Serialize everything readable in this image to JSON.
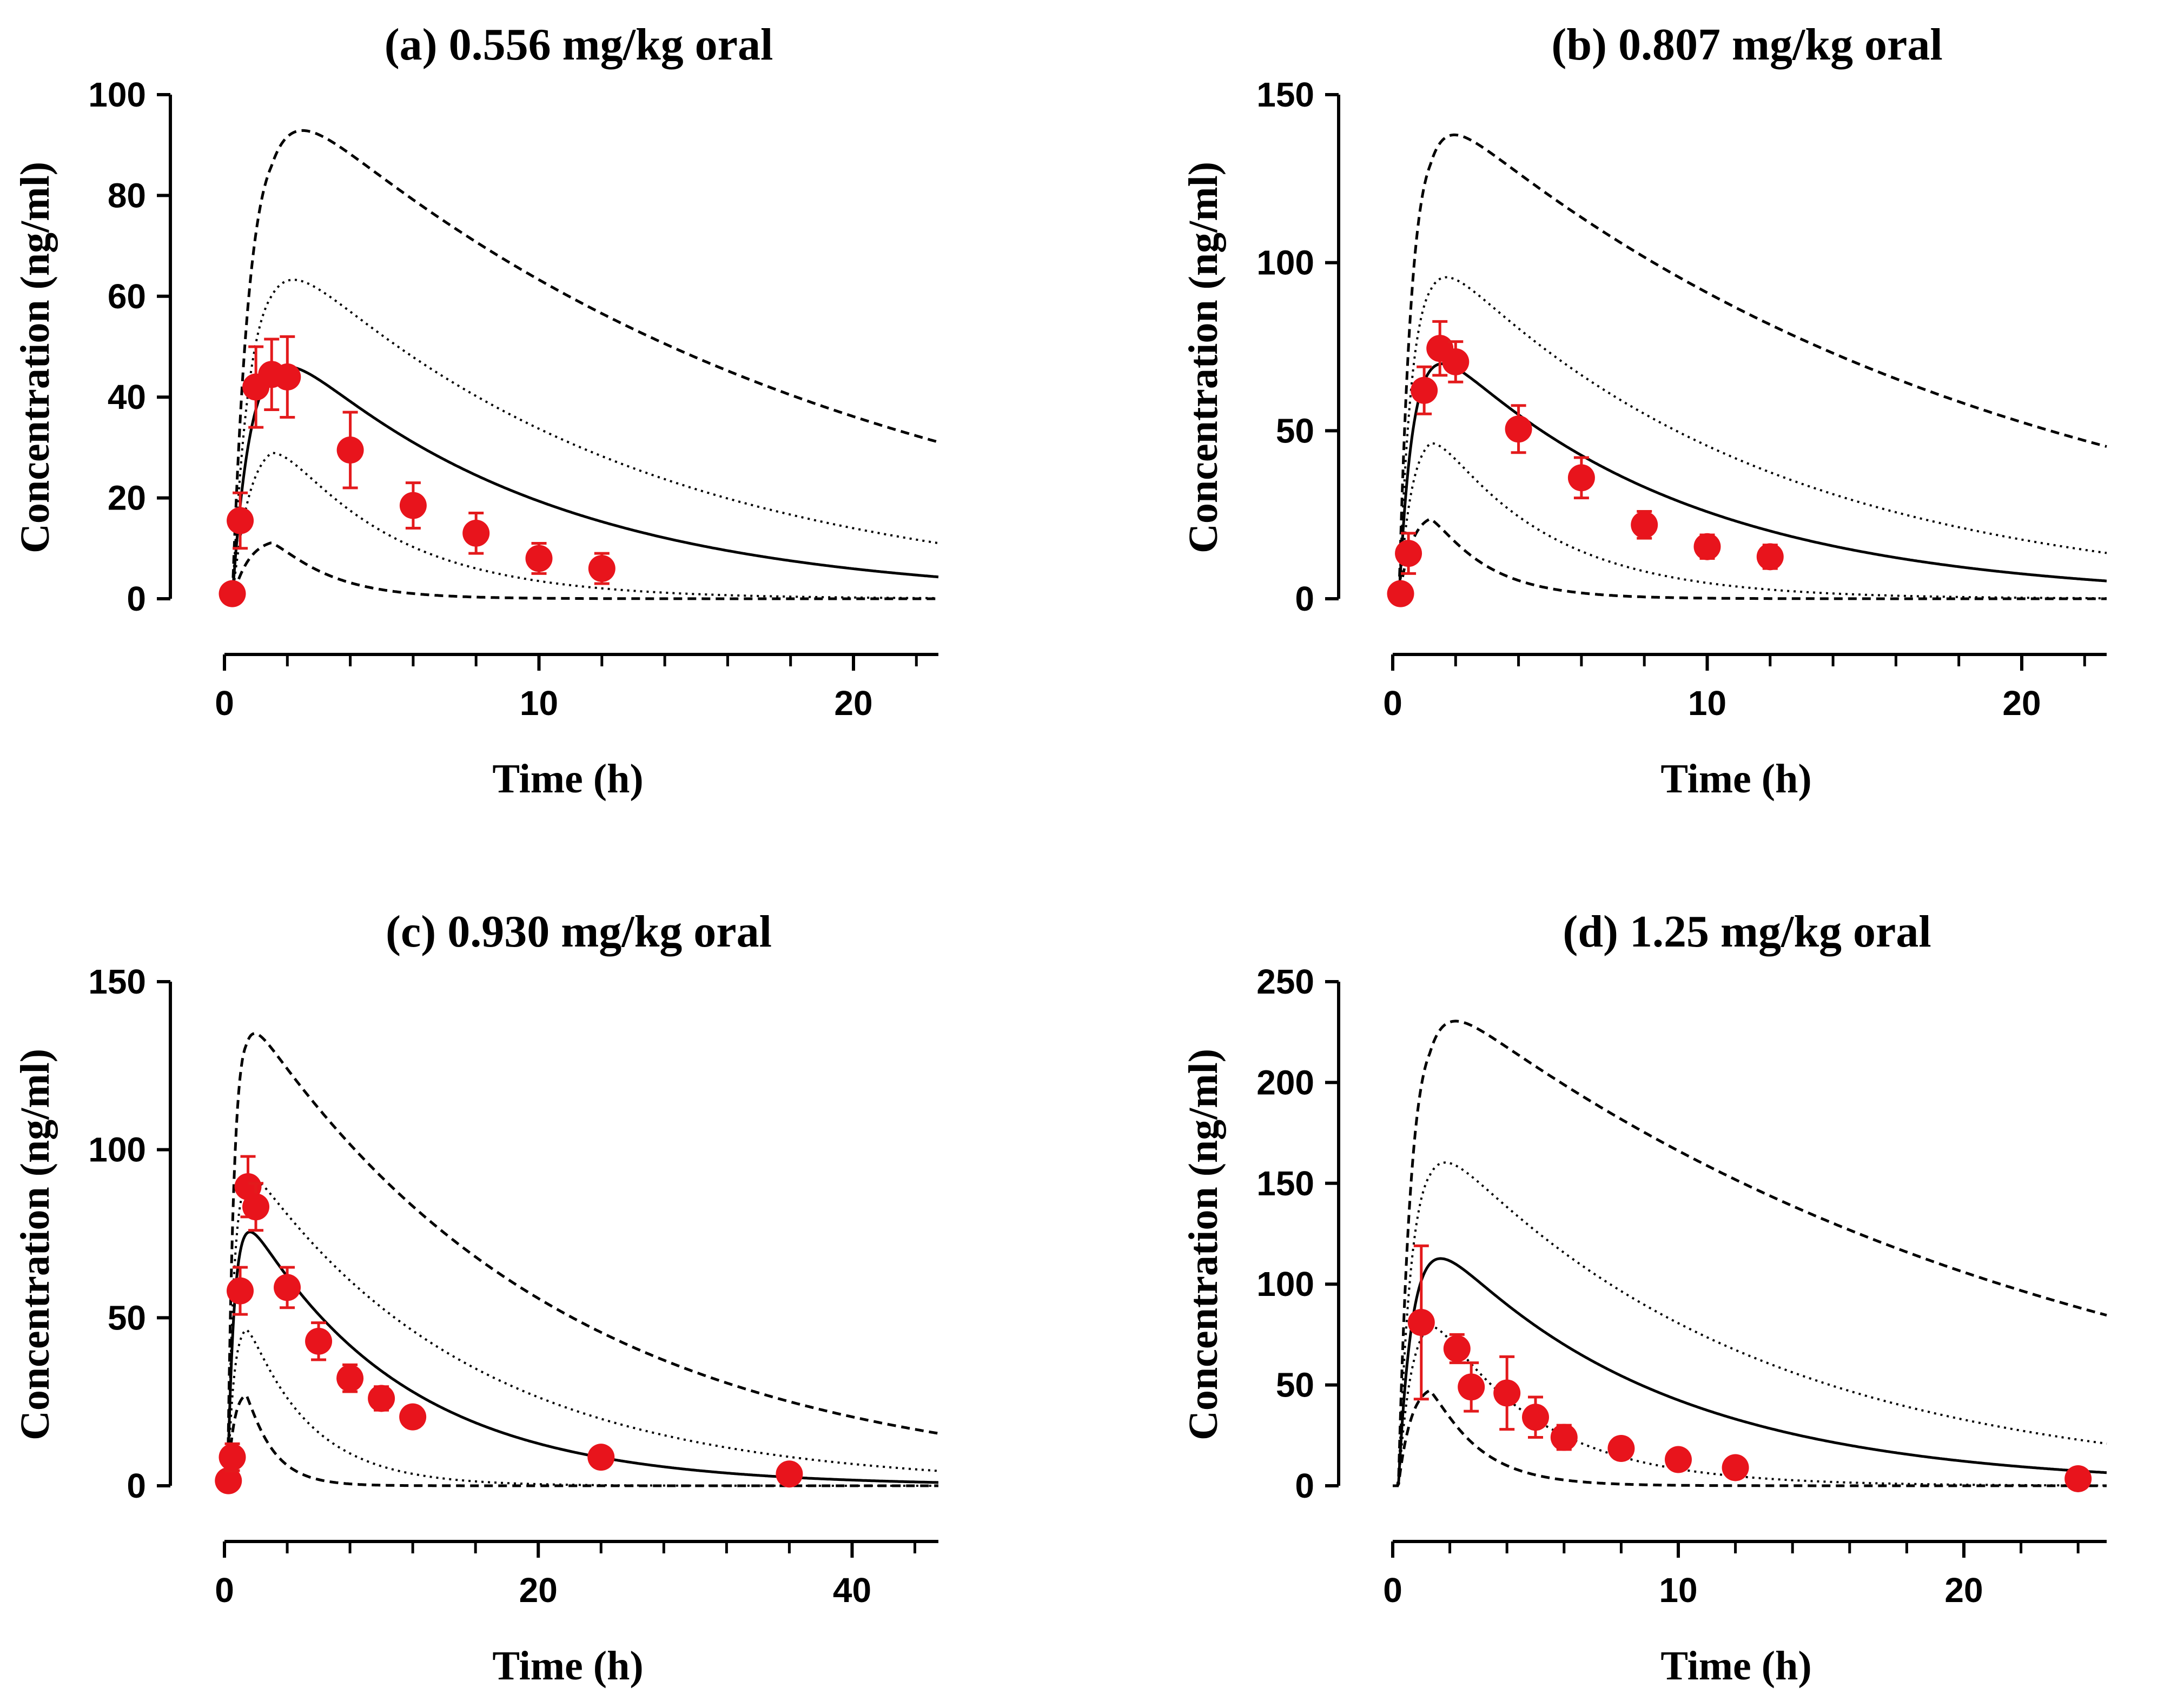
{
  "colors": {
    "observed": "#e8141c",
    "lines": "#000000"
  },
  "chart_data": [
    {
      "type": "line",
      "title": "(a) 0.556 mg/kg oral",
      "xlabel": "Time (h)",
      "ylabel": "Concentration (ng/ml)",
      "xlim": [
        0,
        22.7
      ],
      "ylim": [
        0,
        100
      ],
      "xticks": [
        0,
        10,
        20
      ],
      "xtick_labels": [
        "0",
        "10",
        "20"
      ],
      "xminor": 2,
      "yticks": [
        0,
        20,
        40,
        60,
        80,
        100
      ],
      "ytick_labels": [
        "0",
        "20",
        "40",
        "60",
        "80",
        "100"
      ],
      "grid": false,
      "model": {
        "ka": 1.6,
        "ke": 0.118,
        "tlag": 0.25,
        "peak_time": 1.5,
        "peak_conc": 44.5
      },
      "bands": {
        "p95": 1.93,
        "p75": 1.35,
        "p25": 0.65,
        "p5": 0.25,
        "p95_decay_adj": 0.062,
        "p75_decay_adj": 0.03,
        "p25_decay_adj": -0.15,
        "p5_decay_adj": -0.45
      },
      "observed": {
        "x": [
          0.25,
          0.5,
          1.0,
          1.5,
          2.0,
          4.0,
          6.0,
          8.0,
          10.0,
          12.0
        ],
        "y": [
          1.0,
          15.5,
          42.0,
          44.5,
          44.0,
          29.5,
          18.5,
          13.0,
          8.0,
          6.0
        ],
        "err": [
          0.0,
          5.5,
          8.0,
          7.0,
          8.0,
          7.5,
          4.5,
          4.0,
          3.0,
          3.0
        ]
      }
    },
    {
      "type": "line",
      "title": "(b) 0.807 mg/kg oral",
      "xlabel": "Time (h)",
      "ylabel": "Concentration (ng/ml)",
      "xlim": [
        0,
        22.7
      ],
      "ylim": [
        0,
        150
      ],
      "xticks": [
        0,
        10,
        20
      ],
      "xtick_labels": [
        "0",
        "10",
        "20"
      ],
      "xminor": 2,
      "yticks": [
        0,
        50,
        100,
        150
      ],
      "ytick_labels": [
        "0",
        "50",
        "100",
        "150"
      ],
      "grid": false,
      "model": {
        "ka": 2.2,
        "ke": 0.125,
        "tlag": 0.2,
        "peak_time": 1.2,
        "peak_conc": 68.0
      },
      "bands": {
        "p95": 1.9,
        "p75": 1.35,
        "p25": 0.68,
        "p5": 0.35,
        "p95_decay_adj": 0.07,
        "p75_decay_adj": 0.03,
        "p25_decay_adj": -0.15,
        "p5_decay_adj": -0.45
      },
      "observed": {
        "x": [
          0.25,
          0.5,
          1.0,
          1.5,
          2.0,
          4.0,
          6.0,
          8.0,
          10.0,
          12.0
        ],
        "y": [
          1.5,
          13.5,
          62.0,
          74.5,
          70.5,
          50.5,
          36.0,
          22.0,
          15.5,
          12.5
        ],
        "err": [
          0.0,
          6.0,
          7.0,
          8.0,
          6.0,
          7.0,
          6.0,
          4.0,
          3.5,
          3.5
        ]
      }
    },
    {
      "type": "line",
      "title": "(c) 0.930 mg/kg oral",
      "xlabel": "Time (h)",
      "ylabel": "Concentration (ng/ml)",
      "xlim": [
        0,
        45.5
      ],
      "ylim": [
        0,
        150
      ],
      "xticks": [
        0,
        20,
        40
      ],
      "xtick_labels": [
        "0",
        "20",
        "40"
      ],
      "xminor": 4,
      "yticks": [
        0,
        50,
        100,
        150
      ],
      "ytick_labels": [
        "0",
        "50",
        "100",
        "150"
      ],
      "grid": false,
      "model": {
        "ka": 2.3,
        "ke": 0.1,
        "tlag": 0.2,
        "peak_time": 1.4,
        "peak_conc": 75.0
      },
      "bands": {
        "p95": 1.75,
        "p75": 1.2,
        "p25": 0.62,
        "p5": 0.36,
        "p95_decay_adj": 0.05,
        "p75_decay_adj": 0.03,
        "p25_decay_adj": -0.15,
        "p5_decay_adj": -0.5
      },
      "observed": {
        "x": [
          0.25,
          0.5,
          1.0,
          1.5,
          2.0,
          4.0,
          6.0,
          8.0,
          10.0,
          12.0,
          24.0,
          36.0
        ],
        "y": [
          1.5,
          8.5,
          58.0,
          89.0,
          83.0,
          59.0,
          43.0,
          32.0,
          26.0,
          20.5,
          8.5,
          3.5
        ],
        "err": [
          0.0,
          4.0,
          7.0,
          9.0,
          7.0,
          6.0,
          5.5,
          4.0,
          3.5,
          3.0,
          2.5,
          0.0
        ]
      }
    },
    {
      "type": "line",
      "title": "(d) 1.25 mg/kg oral",
      "xlabel": "Time (h)",
      "ylabel": "Concentration (ng/ml)",
      "xlim": [
        0,
        25
      ],
      "ylim": [
        0,
        250
      ],
      "xticks": [
        0,
        10,
        20
      ],
      "xtick_labels": [
        "0",
        "10",
        "20"
      ],
      "xminor": 2,
      "yticks": [
        0,
        50,
        100,
        150,
        200,
        250
      ],
      "ytick_labels": [
        "0",
        "50",
        "100",
        "150",
        "200",
        "250"
      ],
      "grid": false,
      "model": {
        "ka": 2.0,
        "ke": 0.125,
        "tlag": 0.2,
        "peak_time": 1.3,
        "peak_conc": 110.0
      },
      "bands": {
        "p95": 1.95,
        "p75": 1.4,
        "p25": 0.72,
        "p5": 0.43,
        "p95_decay_adj": 0.08,
        "p75_decay_adj": 0.035,
        "p25_decay_adj": -0.15,
        "p5_decay_adj": -0.5
      },
      "observed": {
        "x": [
          1.0,
          2.25,
          2.75,
          4.0,
          5.0,
          6.0,
          8.0,
          10.0,
          12.0,
          24.0
        ],
        "y": [
          81.0,
          68.0,
          49.0,
          46.0,
          34.0,
          24.0,
          18.5,
          13.0,
          9.0,
          3.5
        ],
        "err": [
          38.0,
          7.0,
          12.0,
          18.0,
          10.0,
          6.0,
          5.0,
          0.0,
          0.0,
          0.0
        ]
      }
    }
  ]
}
